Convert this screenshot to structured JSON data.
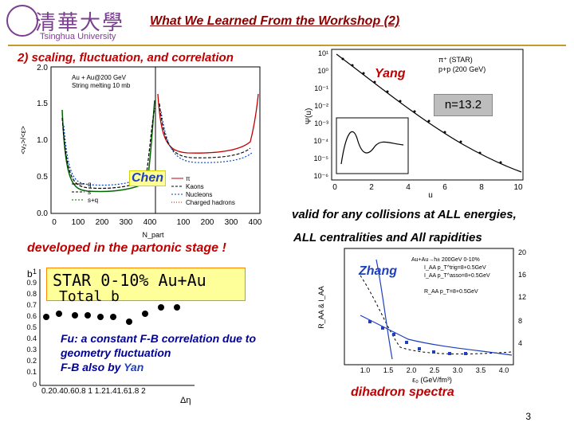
{
  "header": {
    "logo_text": "清華大學",
    "logo_subtitle": "Tsinghua University",
    "title": "What We Learned From the Workshop (2)"
  },
  "section_title": "2) scaling, fluctuation, and correlation",
  "labels": {
    "chen": "Chen",
    "yang": "Yang",
    "n_value": "n=13.2",
    "zhang": "Zhang",
    "partonic": "developed in the partonic stage !",
    "valid_line1": "valid for any collisions at ALL energies,",
    "valid_line2": "ALL centralities and All rapidities",
    "star_box": "STAR 0-10% Au+Au",
    "total_b": "Total b",
    "fu_prefix": "Fu:",
    "fu_text": " a constant F-B correlation due to",
    "fu_line2": "geometry fluctuation",
    "fu_line3_a": "F-B also by ",
    "fu_line3_b": "Yan",
    "dihadron": "dihadron spectra",
    "page_number": "3"
  },
  "plot_chen": {
    "y_ticks": [
      "2.0",
      "1.5",
      "1.0",
      "0.5",
      "0.0"
    ],
    "x_ticks": [
      "0",
      "100",
      "200",
      "300",
      "400",
      "100",
      "200",
      "300",
      "400"
    ],
    "y_axis_label": "<v₂>/<ε>",
    "x_axis_label": "N_part",
    "legend_top": [
      "Au + Au@200 GeV",
      "String melting 10 mb"
    ],
    "legend_left": [
      "q",
      "s",
      "s+q"
    ],
    "legend_right": [
      "π",
      "Kaons",
      "Nucleons",
      "Charged hadrons"
    ]
  },
  "plot_yang": {
    "y_ticks": [
      "10¹",
      "10⁰",
      "10⁻¹",
      "10⁻²",
      "10⁻³",
      "10⁻⁴",
      "10⁻⁵",
      "10⁻⁶"
    ],
    "x_ticks": [
      "0",
      "2",
      "4",
      "6",
      "8",
      "10"
    ],
    "x_axis_label": "u",
    "y_axis_label": "Ψ(u)",
    "legend": [
      "π⁺ (STAR)",
      "p+p (200 GeV)"
    ]
  },
  "plot_star": {
    "y_ticks": [
      "1",
      "0.9",
      "0.8",
      "0.7",
      "0.6",
      "0.5",
      "0.4",
      "0.3",
      "0.2",
      "0.1",
      "0"
    ],
    "x_ticks": "0.20.40.60.8 1 1.21.41.61.8 2",
    "x_axis_label": "Δη",
    "y_axis_label": "b"
  },
  "plot_zhang": {
    "x_ticks": [
      "1.0",
      "1.5",
      "2.0",
      "2.5",
      "3.0",
      "3.5",
      "4.0"
    ],
    "y_right_ticks": [
      "20",
      "16",
      "12",
      "8",
      "4"
    ],
    "x_axis_label": "ε₀ (GeV/fm³)",
    "y_axis_label": "R_AA & I_AA",
    "legend": [
      "Au+Au→h± 200GeV  0-10%",
      "I_AA  p_T^trig=8+0.5GeV",
      "I_AA  p_T^asso=8+0.5GeV",
      "R_AA  p_T=8+0.5GeV"
    ]
  },
  "colors": {
    "title": "#8b0000",
    "accent_red": "#c00000",
    "blue": "#1f3fbf",
    "orange_line": "#c89a2c",
    "yellow_box": "#ffff99",
    "star_box_border": "#ff8800"
  }
}
